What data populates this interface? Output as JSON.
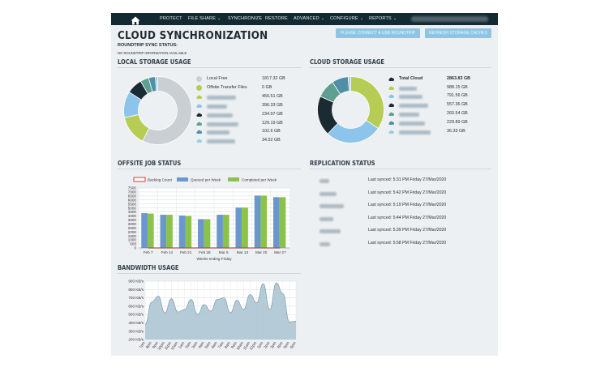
{
  "nav": {
    "home_icon": "home-icon",
    "items": [
      {
        "label": "PROTECT",
        "dropdown": false
      },
      {
        "label": "FILE SHARE",
        "dropdown": true
      },
      {
        "label": "SYNCHRONIZE",
        "dropdown": false
      },
      {
        "label": "RESTORE",
        "dropdown": false
      },
      {
        "label": "ADVANCED",
        "dropdown": true
      },
      {
        "label": "CONFIGURE",
        "dropdown": true
      },
      {
        "label": "REPORTS",
        "dropdown": true
      }
    ]
  },
  "page": {
    "title": "CLOUD SYNCHRONIZATION",
    "roundtrip_status_label": "ROUNDTRIP SYNC STATUS:",
    "roundtrip_info": "NO ROUNDTRIP INFORMATION AVAILABLE",
    "connect_button": "PLEASE CONNECT A USB ROUNDTRIP",
    "refresh_button": "REFRESH STORAGE CACHES"
  },
  "local_storage": {
    "heading": "LOCAL STORAGE USAGE",
    "items": [
      {
        "label": "Local Free",
        "value": "1817.32 GB",
        "color": "#c9cfd3",
        "value_gb": 1817.32
      },
      {
        "label": "Offsite Transfer Files",
        "value": "0 GB",
        "color": "#b5cc55",
        "value_gb": 0
      },
      {
        "label": "",
        "value": "456.51 GB",
        "color": "#b5cc55",
        "value_gb": 456.51
      },
      {
        "label": "",
        "value": "396.33 GB",
        "color": "#8cc4ec",
        "value_gb": 396.33
      },
      {
        "label": "",
        "value": "234.97 GB",
        "color": "#1b2b33",
        "value_gb": 234.97
      },
      {
        "label": "",
        "value": "129.19 GB",
        "color": "#5e9f92",
        "value_gb": 129.19
      },
      {
        "label": "",
        "value": "102.6 GB",
        "color": "#4f8fa8",
        "value_gb": 102.6
      },
      {
        "label": "",
        "value": "34.52 GB",
        "color": "#96d3e0",
        "value_gb": 34.52
      }
    ]
  },
  "cloud_storage": {
    "heading": "CLOUD STORAGE USAGE",
    "total_label": "Total Cloud",
    "total_value": "2863.83 GB",
    "total_icon": "cloud-icon",
    "items": [
      {
        "label": "",
        "value": "988.15 GB",
        "color": "#b5cc55",
        "value_gb": 988.15
      },
      {
        "label": "",
        "value": "791.56 GB",
        "color": "#8cc4ec",
        "value_gb": 791.56
      },
      {
        "label": "",
        "value": "557.36 GB",
        "color": "#1b2b33",
        "value_gb": 557.36
      },
      {
        "label": "",
        "value": "260.54 GB",
        "color": "#5e9f92",
        "value_gb": 260.54
      },
      {
        "label": "",
        "value": "229.89 GB",
        "color": "#4f8fa8",
        "value_gb": 229.89
      },
      {
        "label": "",
        "value": "36.33 GB",
        "color": "#96d3e0",
        "value_gb": 36.33
      }
    ]
  },
  "offsite": {
    "heading": "OFFSITE JOB STATUS",
    "chart_data": {
      "type": "bar",
      "categories": [
        "Feb 7",
        "Feb 14",
        "Feb 21",
        "Feb 28",
        "Mar 6",
        "Mar 13",
        "Mar 20",
        "Mar 27"
      ],
      "series": [
        {
          "name": "Backlog Count",
          "color": "#d23c3c",
          "values": [
            0,
            0,
            0,
            0,
            0,
            0,
            0,
            0
          ]
        },
        {
          "name": "Queued per Week",
          "color": "#6b97cf",
          "values": [
            4350,
            4150,
            4050,
            3600,
            4150,
            5050,
            6550,
            6350
          ]
        },
        {
          "name": "Completed per Week",
          "color": "#8bc34a",
          "values": [
            4300,
            4150,
            4000,
            3600,
            4150,
            5050,
            6550,
            6350
          ]
        }
      ],
      "yticks": [
        0,
        500,
        1000,
        1500,
        2000,
        2500,
        3000,
        3500,
        4000,
        4500,
        5000,
        5500,
        6000,
        6500,
        7000,
        7500
      ],
      "ylim": [
        0,
        7500
      ],
      "xlabel": "Weeks ending Friday",
      "legend": "top",
      "grid": true
    }
  },
  "replication": {
    "heading": "REPLICATION STATUS",
    "rows": [
      {
        "text": "Last synced: 5:31 PM Friday 27/Mar/2020"
      },
      {
        "text": "Last synced: 5:42 PM Friday 27/Mar/2020"
      },
      {
        "text": "Last synced: 5:19 PM Friday 27/Mar/2020"
      },
      {
        "text": "Last synced: 5:44 PM Friday 27/Mar/2020"
      },
      {
        "text": "Last synced: 5:39 PM Friday 27/Mar/2020"
      },
      {
        "text": "Last synced: 5:58 PM Friday 27/Mar/2020"
      }
    ]
  },
  "bandwidth": {
    "heading": "BANDWIDTH USAGE",
    "chart_data": {
      "type": "area",
      "ylim": [
        200,
        900
      ],
      "yticks": [
        "200 KB/s",
        "300 KB/s",
        "400 KB/s",
        "500 KB/s",
        "600 KB/s",
        "700 KB/s",
        "800 KB/s",
        "900 KB/s"
      ],
      "ytick_values": [
        200,
        300,
        400,
        500,
        600,
        700,
        800,
        900
      ],
      "x": [
        "7pm",
        "8pm",
        "9pm",
        "10pm",
        "11pm",
        "12am",
        "1am",
        "2am",
        "3am",
        "4am",
        "5am",
        "6am",
        "7am",
        "8am",
        "9am",
        "10am",
        "11am",
        "12pm",
        "1pm",
        "2pm",
        "3pm",
        "4pm",
        "5pm",
        "6pm"
      ],
      "values": [
        380,
        650,
        720,
        520,
        690,
        530,
        560,
        680,
        500,
        620,
        540,
        680,
        700,
        520,
        670,
        560,
        740,
        640,
        870,
        560,
        880,
        750,
        410,
        420
      ],
      "color": "#a9c2d1",
      "grid": true
    }
  }
}
